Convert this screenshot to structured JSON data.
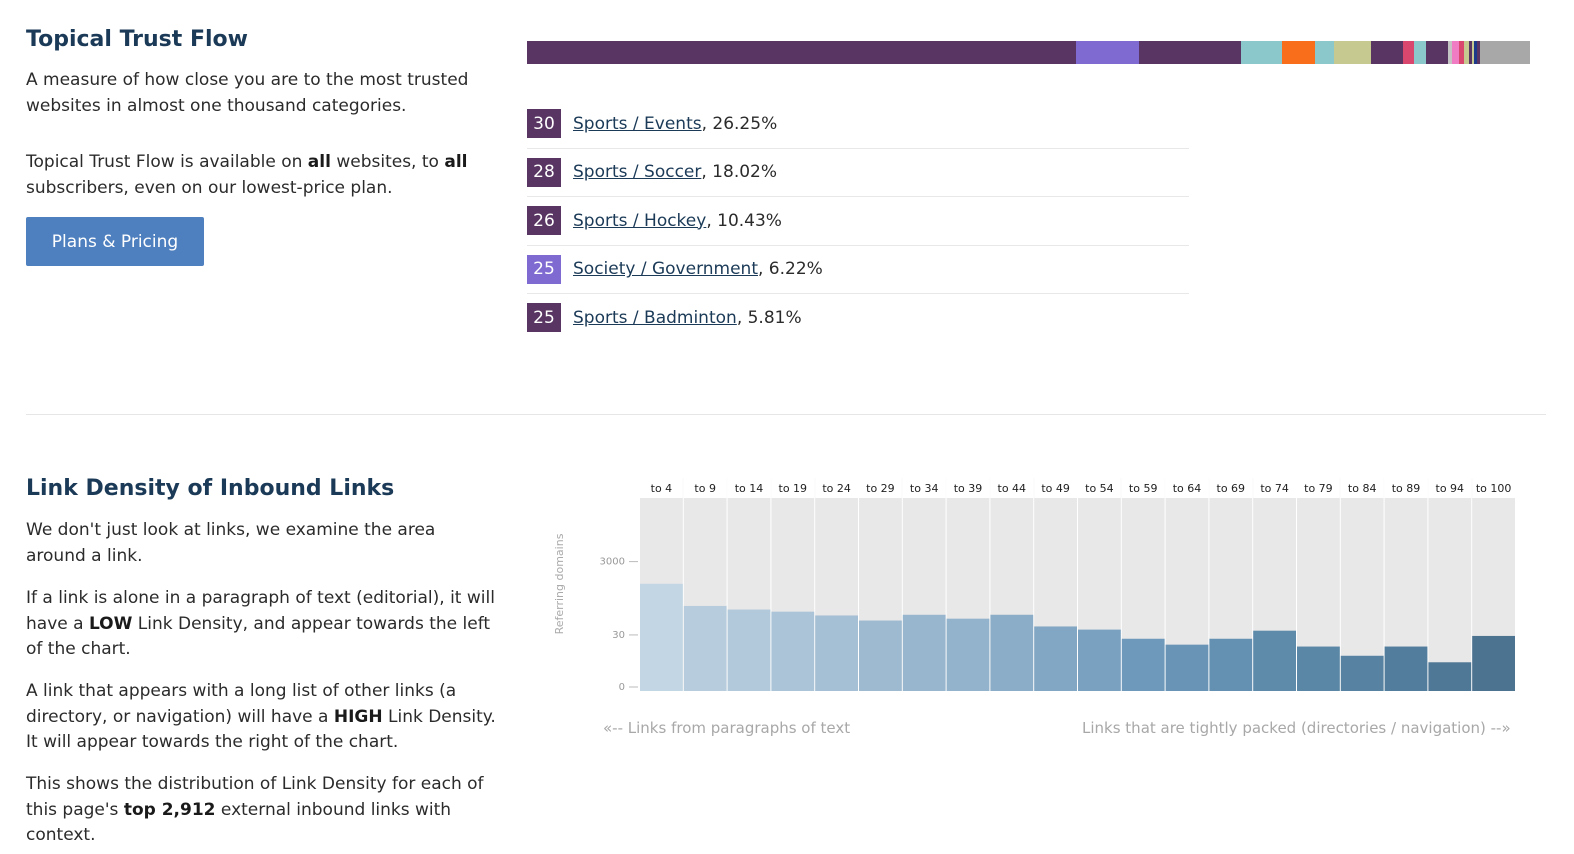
{
  "topical": {
    "title": "Topical Trust Flow",
    "desc": "A measure of how close you are to the most trusted websites in almost one thousand categories.",
    "avail_pre": "Topical Trust Flow is available on ",
    "avail_b1": "all",
    "avail_mid": " websites, to ",
    "avail_b2": "all",
    "avail_post": " subscribers, even on our lowest-price plan.",
    "button_label": "Plans & Pricing",
    "bar_segments": [
      {
        "fraction": 0.5475,
        "color": "#583562"
      },
      {
        "fraction": 0.0625,
        "color": "#7e6ad0"
      },
      {
        "fraction": 0.1015,
        "color": "#583562"
      },
      {
        "fraction": 0.041,
        "color": "#8bc8cc"
      },
      {
        "fraction": 0.0335,
        "color": "#f86e1b"
      },
      {
        "fraction": 0.0185,
        "color": "#8bc8cc"
      },
      {
        "fraction": 0.0365,
        "color": "#c6c990"
      },
      {
        "fraction": 0.032,
        "color": "#583562"
      },
      {
        "fraction": 0.0115,
        "color": "#d9476f"
      },
      {
        "fraction": 0.0115,
        "color": "#8bc8cc"
      },
      {
        "fraction": 0.022,
        "color": "#583562"
      },
      {
        "fraction": 0.004,
        "color": "#c4c4c4"
      },
      {
        "fraction": 0.0075,
        "color": "#f07cc4"
      },
      {
        "fraction": 0.005,
        "color": "#d9476f"
      },
      {
        "fraction": 0.0045,
        "color": "#c6c990"
      },
      {
        "fraction": 0.003,
        "color": "#583562"
      },
      {
        "fraction": 0.0025,
        "color": "#c6c990"
      },
      {
        "fraction": 0.0025,
        "color": "#1d3a8a"
      },
      {
        "fraction": 0.003,
        "color": "#583562"
      },
      {
        "fraction": 0.05,
        "color": "#a8a8a8"
      }
    ],
    "topics": [
      {
        "score": "30",
        "label": "Sports / Events",
        "pct": ", 26.25%",
        "color": "#583562"
      },
      {
        "score": "28",
        "label": "Sports / Soccer",
        "pct": ", 18.02%",
        "color": "#583562"
      },
      {
        "score": "26",
        "label": "Sports / Hockey",
        "pct": ", 10.43%",
        "color": "#583562"
      },
      {
        "score": "25",
        "label": "Society / Government",
        "pct": ", 6.22%",
        "color": "#7e6ad0"
      },
      {
        "score": "25",
        "label": "Sports / Badminton",
        "pct": ", 5.81%",
        "color": "#583562"
      }
    ]
  },
  "link_density": {
    "title": "Link Density of Inbound Links",
    "p1": "We don't just look at links, we examine the area around a link.",
    "p2_pre": "If a link is alone in a paragraph of text (editorial), it will have a ",
    "p2_b": "LOW",
    "p2_post": " Link Density, and appear towards the left of the chart.",
    "p3_pre": "A link that appears with a long list of other links (a directory, or navigation) will have a ",
    "p3_b": "HIGH",
    "p3_post": " Link Density. It will appear towards the right of the chart.",
    "p4_pre": "This shows the distribution of Link Density for each of this page's ",
    "p4_b": "top 2,912",
    "p4_post": " external inbound links with context.",
    "caption_left": "«-- Links from paragraphs of text",
    "caption_right": "Links that are tightly packed (directories / navigation) --»"
  },
  "chart_data": {
    "type": "bar",
    "ylabel": "Referring domains",
    "y_ticks": [
      "3000",
      "30",
      "0"
    ],
    "y_scale": "log",
    "categories": [
      "to 4",
      "to 9",
      "to 14",
      "to 19",
      "to 24",
      "to 29",
      "to 34",
      "to 39",
      "to 44",
      "to 49",
      "to 54",
      "to 59",
      "to 64",
      "to 69",
      "to 74",
      "to 79",
      "to 84",
      "to 89",
      "to 94",
      "to 100"
    ],
    "values": [
      800,
      200,
      160,
      140,
      110,
      80,
      115,
      90,
      115,
      55,
      45,
      25,
      17,
      25,
      42,
      15,
      8,
      15,
      5,
      30
    ],
    "colors": [
      "#c3d6e4",
      "#b7ccdd",
      "#b2c9db",
      "#abc4d8",
      "#a5bfd4",
      "#9dbad1",
      "#98b6ce",
      "#93b2cb",
      "#8badc8",
      "#82a7c4",
      "#7aa1c0",
      "#6f99ba",
      "#6994b5",
      "#6490b1",
      "#5f8bab",
      "#5b87a6",
      "#5782a1",
      "#537d9c",
      "#4f7896",
      "#4c7390"
    ]
  }
}
